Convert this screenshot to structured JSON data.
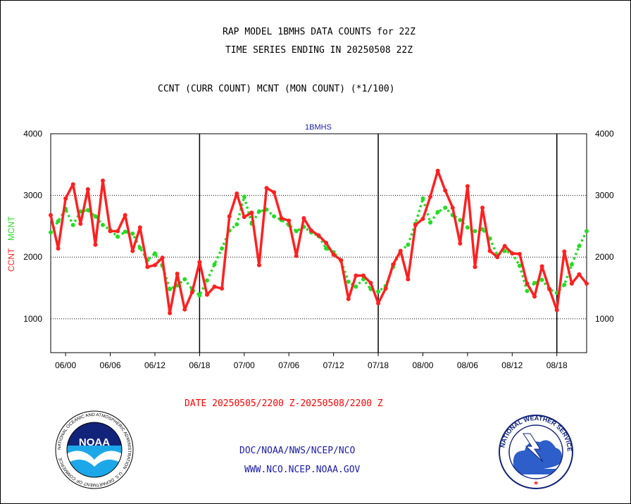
{
  "header": {
    "title_line1": "RAP MODEL 1BMHS DATA COUNTS for 22Z",
    "title_line2": "TIME SERIES ENDING IN 20250508 22Z",
    "subtitle": "CCNT (CURR COUNT) MCNT (MON COUNT) (*1/100)"
  },
  "footer": {
    "date_range": "DATE 20250505/2200 Z-20250508/2200 Z",
    "org_line": "DOC/NOAA/NWS/NCEP/NCO",
    "url_line": "WWW.NCO.NCEP.NOAA.GOV"
  },
  "logos": {
    "noaa": {
      "text": "NOAA",
      "ring_text": "NATIONAL OCEANIC AND ATMOSPHERIC ADMINISTRATION · U.S. DEPARTMENT OF COMMERCE"
    },
    "nws": {
      "ring_text": "NATIONAL WEATHER SERVICE"
    }
  },
  "colors": {
    "ccnt": "#ff2020",
    "mcnt": "#22dd22",
    "footer_text": "#1a1aaa",
    "plot_label": "#1a1aaa"
  },
  "chart_data": {
    "type": "line",
    "title": "1BMHS",
    "ylabel_ccnt": "CCNT",
    "ylabel_mcnt": "MCNT",
    "ylim": [
      450,
      4000
    ],
    "yticks": [
      1000,
      2000,
      3000,
      4000
    ],
    "ytick_labels": [
      "1000",
      "2000",
      "3000",
      "4000"
    ],
    "xlim": [
      0,
      72
    ],
    "xticks": [
      2,
      8,
      14,
      20,
      26,
      32,
      38,
      44,
      50,
      56,
      62,
      68
    ],
    "xtick_labels": [
      "06/00",
      "06/06",
      "06/12",
      "06/18",
      "07/00",
      "07/06",
      "07/12",
      "07/18",
      "08/00",
      "08/06",
      "08/12",
      "08/18"
    ],
    "major_x_lines": [
      20,
      44,
      68
    ],
    "hgrid": [
      1000,
      2000,
      3000
    ],
    "series": [
      {
        "name": "CCNT",
        "x": [
          0,
          1,
          2,
          3,
          4,
          5,
          6,
          7,
          8,
          9,
          10,
          11,
          12,
          13,
          14,
          15,
          16,
          17,
          18,
          19,
          20,
          21,
          22,
          23,
          24,
          25,
          26,
          27,
          28,
          29,
          30,
          31,
          32,
          33,
          34,
          35,
          36,
          37,
          38,
          39,
          40,
          41,
          42,
          43,
          44,
          45,
          46,
          47,
          48,
          49,
          50,
          51,
          52,
          53,
          54,
          55,
          56,
          57,
          58,
          59,
          60,
          61,
          62,
          63,
          64,
          65,
          66,
          67,
          68,
          69,
          70,
          71,
          72
        ],
        "values": [
          2680,
          2140,
          2950,
          3180,
          2540,
          3100,
          2200,
          3240,
          2420,
          2420,
          2680,
          2100,
          2480,
          1840,
          1870,
          1990,
          1090,
          1730,
          1150,
          1430,
          1920,
          1390,
          1520,
          1490,
          2660,
          3030,
          2650,
          2720,
          1870,
          3120,
          3050,
          2630,
          2590,
          2020,
          2630,
          2430,
          2350,
          2230,
          2040,
          1950,
          1320,
          1700,
          1700,
          1580,
          1250,
          1490,
          1880,
          2100,
          1640,
          2520,
          2620,
          2980,
          3400,
          3080,
          2800,
          2220,
          3150,
          1840,
          2800,
          2100,
          2000,
          2180,
          2060,
          2050,
          1570,
          1360,
          1850,
          1480,
          1140,
          2090,
          1570,
          1720,
          1570
        ]
      },
      {
        "name": "MCNT",
        "x": [
          0,
          1,
          2,
          3,
          4,
          5,
          6,
          7,
          8,
          9,
          10,
          11,
          12,
          13,
          14,
          15,
          16,
          17,
          18,
          19,
          20,
          21,
          22,
          23,
          24,
          25,
          26,
          27,
          28,
          29,
          30,
          31,
          32,
          33,
          34,
          35,
          36,
          37,
          38,
          39,
          40,
          41,
          42,
          43,
          44,
          45,
          46,
          47,
          48,
          49,
          50,
          51,
          52,
          53,
          54,
          55,
          56,
          57,
          58,
          59,
          60,
          61,
          62,
          63,
          64,
          65,
          66,
          67,
          68,
          69,
          70,
          71,
          72
        ],
        "values": [
          2400,
          2580,
          2780,
          2520,
          2740,
          2760,
          2660,
          2520,
          2440,
          2330,
          2410,
          2380,
          2150,
          1950,
          2060,
          1860,
          1480,
          1540,
          1640,
          1480,
          1380,
          1620,
          1880,
          2140,
          2430,
          2530,
          2980,
          2540,
          2740,
          2770,
          2660,
          2600,
          2520,
          2420,
          2490,
          2400,
          2340,
          2140,
          2080,
          1940,
          1600,
          1520,
          1640,
          1480,
          1440,
          1530,
          1840,
          2100,
          2200,
          2540,
          2950,
          2560,
          2730,
          2800,
          2680,
          2600,
          2480,
          2420,
          2450,
          2300,
          2030,
          2100,
          2060,
          1860,
          1450,
          1580,
          1630,
          1480,
          1420,
          1550,
          1880,
          2180,
          2420
        ]
      }
    ]
  }
}
